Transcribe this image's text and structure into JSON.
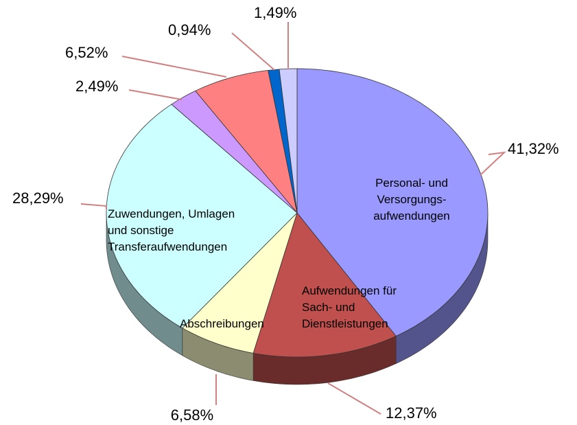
{
  "chart_data": {
    "type": "pie",
    "categories": [
      "Personal- und\nVersorgungs-\naufwendungen",
      "Aufwendungen für\nSach- und\nDienstleistungen",
      "Abschreibungen",
      "Zuwendungen, Umlagen\nund sonstige\nTransferaufwendungen",
      null,
      null,
      null,
      null
    ],
    "values": [
      41.32,
      12.37,
      6.58,
      28.29,
      2.49,
      6.52,
      0.94,
      1.49
    ],
    "value_labels": [
      "41,32%",
      "12,37%",
      "6,58%",
      "28,29%",
      "2,49%",
      "6,52%",
      "0,94%",
      "1,49%"
    ],
    "colors": [
      "#9999ff",
      "#c0504d",
      "#ffffcc",
      "#ccffff",
      "#cc99ff",
      "#ff8080",
      "#0066cc",
      "#ccccff"
    ]
  }
}
